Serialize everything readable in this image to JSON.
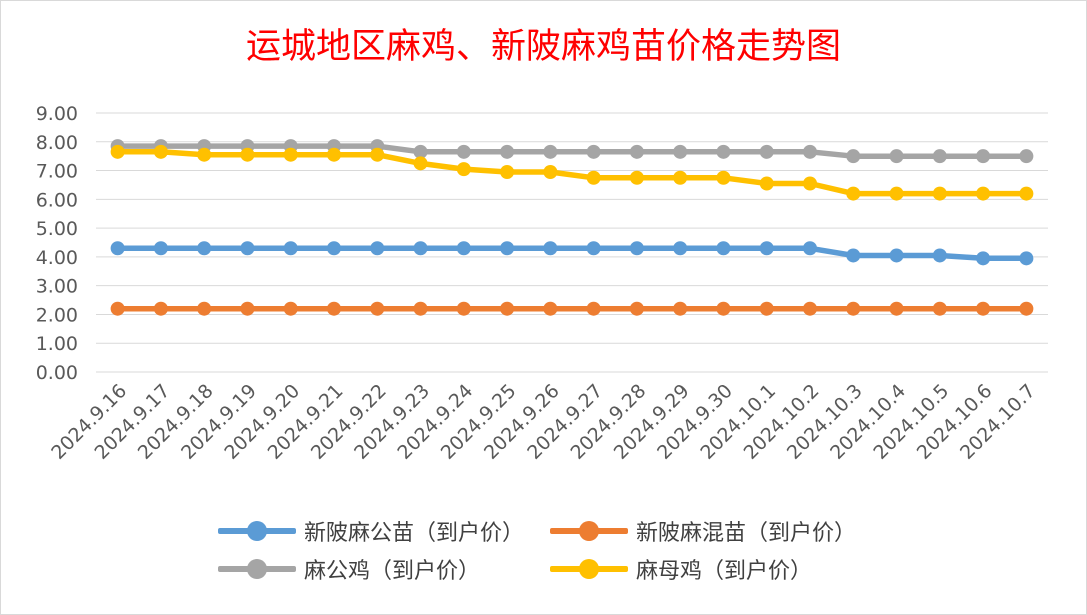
{
  "chart_data": {
    "type": "line",
    "title": "运城地区麻鸡、新陂麻鸡苗价格走势图",
    "xlabel": "",
    "ylabel": "",
    "ylim": [
      0,
      9
    ],
    "yticks": [
      "0.00",
      "1.00",
      "2.00",
      "3.00",
      "4.00",
      "5.00",
      "6.00",
      "7.00",
      "8.00",
      "9.00"
    ],
    "grid": true,
    "legend_position": "bottom",
    "categories": [
      "2024.9.16",
      "2024.9.17",
      "2024.9.18",
      "2024.9.19",
      "2024.9.20",
      "2024.9.21",
      "2024.9.22",
      "2024.9.23",
      "2024.9.24",
      "2024.9.25",
      "2024.9.26",
      "2024.9.27",
      "2024.9.28",
      "2024.9.29",
      "2024.9.30",
      "2024.10.1",
      "2024.10.2",
      "2024.10.3",
      "2024.10.4",
      "2024.10.5",
      "2024.10.6",
      "2024.10.7"
    ],
    "series": [
      {
        "name": "新陂麻公苗（到户价）",
        "color": "#5b9bd5",
        "values": [
          4.3,
          4.3,
          4.3,
          4.3,
          4.3,
          4.3,
          4.3,
          4.3,
          4.3,
          4.3,
          4.3,
          4.3,
          4.3,
          4.3,
          4.3,
          4.3,
          4.3,
          4.05,
          4.05,
          4.05,
          3.95,
          3.95
        ]
      },
      {
        "name": "新陂麻混苗（到户价）",
        "color": "#ed7d31",
        "values": [
          2.2,
          2.2,
          2.2,
          2.2,
          2.2,
          2.2,
          2.2,
          2.2,
          2.2,
          2.2,
          2.2,
          2.2,
          2.2,
          2.2,
          2.2,
          2.2,
          2.2,
          2.2,
          2.2,
          2.2,
          2.2,
          2.2
        ]
      },
      {
        "name": "麻公鸡（到户价）",
        "color": "#a5a5a5",
        "values": [
          7.85,
          7.85,
          7.85,
          7.85,
          7.85,
          7.85,
          7.85,
          7.65,
          7.65,
          7.65,
          7.65,
          7.65,
          7.65,
          7.65,
          7.65,
          7.65,
          7.65,
          7.5,
          7.5,
          7.5,
          7.5,
          7.5
        ]
      },
      {
        "name": "麻母鸡（到户价）",
        "color": "#ffc000",
        "values": [
          7.65,
          7.65,
          7.55,
          7.55,
          7.55,
          7.55,
          7.55,
          7.25,
          7.05,
          6.95,
          6.95,
          6.75,
          6.75,
          6.75,
          6.75,
          6.55,
          6.55,
          6.2,
          6.2,
          6.2,
          6.2,
          6.2
        ]
      }
    ]
  }
}
